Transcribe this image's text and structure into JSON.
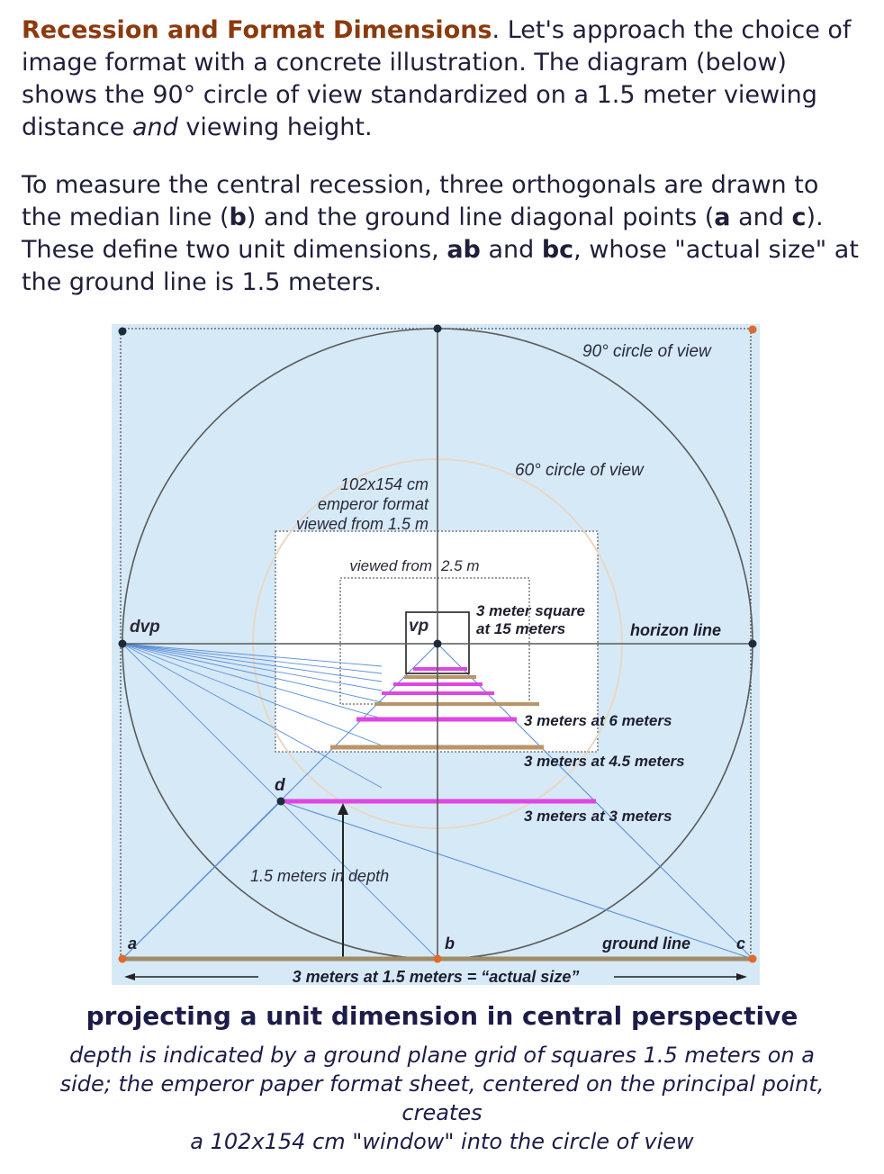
{
  "intro": {
    "p1": {
      "lead": "Recession and Format Dimensions",
      "t1": ". Let's approach the choice of image format with a concrete illustration. The diagram (below) shows the 90° circle of view standardized on a 1.5 meter viewing distance ",
      "em": "and",
      "t2": " viewing height."
    },
    "p2": {
      "t1": "To measure the central recession, three orthogonals are drawn to the median line (",
      "b": "b",
      "t2": ") and the ground line diagonal points (",
      "a": "a",
      "t3": " and ",
      "c": "c",
      "t4": "). These define two unit dimensions, ",
      "ab": "ab",
      "t5": " and ",
      "bc": "bc",
      "t6": ", whose \"actual size\" at the ground line is 1.5 meters."
    }
  },
  "diagram": {
    "labels": {
      "circle90": "90° circle of view",
      "circle60": "60° circle of view",
      "emperor1": "102x154 cm",
      "emperor2": "emperor format",
      "emperor3": "viewed from 1.5 m",
      "viewed25a": "viewed from",
      "viewed25b": "2.5 m",
      "dvp": "dvp",
      "vp": "vp",
      "sq1": "3 meter square",
      "sq2": "at 15 meters",
      "horizon": "horizon line",
      "m6": "3 meters at 6 meters",
      "m45": "3 meters at 4.5 meters",
      "m3": "3 meters at 3 meters",
      "d": "d",
      "depth": "1.5 meters in depth",
      "a": "a",
      "b": "b",
      "c": "c",
      "ground": "ground line",
      "actual": "3 meters at 1.5 meters = “actual size”"
    },
    "colors": {
      "background": "#d6e9f7",
      "lines": "#5a5a5a",
      "diagonals": "#5b8fd8",
      "magenta": "#e045e6",
      "tan": "#b9956a",
      "dots": "#1e2a38",
      "ground_dots": "#e06a2a",
      "white_window": "#ffffff"
    }
  },
  "caption": {
    "title": "projecting a unit dimension in central perspective",
    "line1": "depth is indicated by a ground plane grid of squares 1.5 meters on a side; the emperor paper format sheet, centered on the principal point, creates",
    "line2": "a 102x154 cm \"window\" into the circle of view"
  }
}
